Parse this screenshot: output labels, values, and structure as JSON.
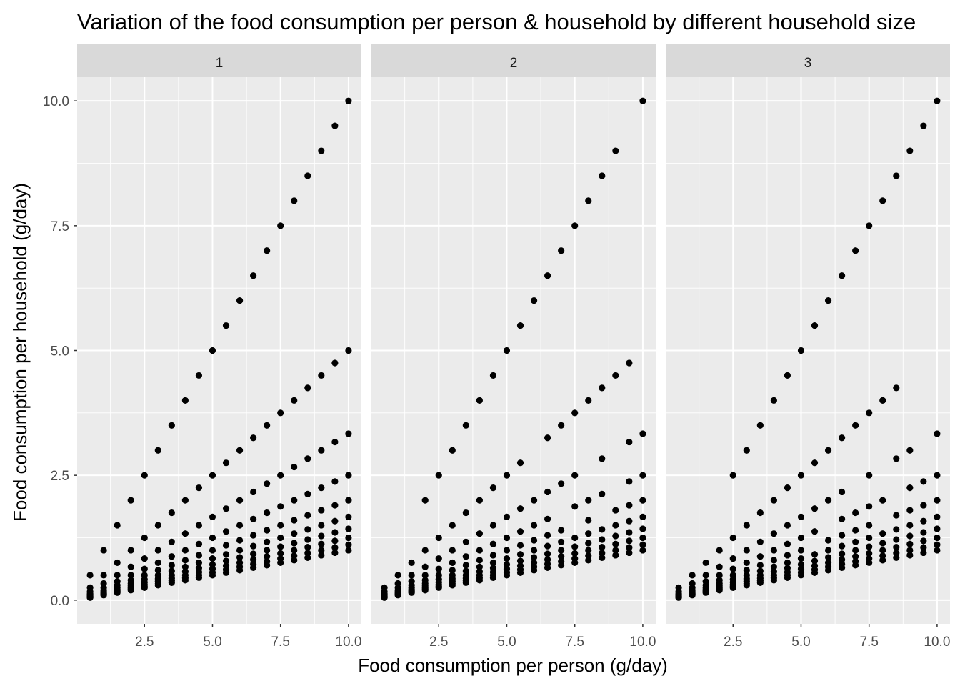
{
  "chart_data": {
    "type": "scatter",
    "title": "Variation of the food consumption per person & household by different household size",
    "xlabel": "Food consumption per person (g/day)",
    "ylabel": "Food consumption per household (g/day)",
    "xlim": [
      0.025,
      10.475
    ],
    "ylim": [
      -0.475,
      10.475
    ],
    "x_ticks": [
      "2.5",
      "5.0",
      "7.5",
      "10.0"
    ],
    "x_tick_values": [
      2.5,
      5.0,
      7.5,
      10.0
    ],
    "y_ticks": [
      "0.0",
      "2.5",
      "5.0",
      "7.5",
      "10.0"
    ],
    "y_tick_values": [
      0,
      2.5,
      5.0,
      7.5,
      10.0
    ],
    "grid": true,
    "point_color": "#000000",
    "panel_background": "#ebebeb",
    "strip_background": "#d9d9d9",
    "consumption_per_person": [
      0.5,
      1.0,
      1.5,
      2.0,
      2.5,
      3.0,
      3.5,
      4.0,
      4.5,
      5.0,
      5.5,
      6.0,
      6.5,
      7.0,
      7.5,
      8.0,
      8.5,
      9.0,
      9.5,
      10.0
    ],
    "household_sizes": [
      1,
      2,
      3,
      4,
      5,
      6,
      7,
      8,
      9,
      10
    ],
    "facets": [
      {
        "label": "1",
        "missing": []
      },
      {
        "label": "2",
        "missing": [
          [
            0.5,
            1
          ],
          [
            1.0,
            1
          ],
          [
            1.5,
            1
          ],
          [
            9.5,
            1
          ],
          [
            10.0,
            2
          ],
          [
            6.0,
            2
          ],
          [
            8.0,
            3
          ],
          [
            9.0,
            3
          ],
          [
            7.0,
            4
          ],
          [
            7.5,
            5
          ],
          [
            8.5,
            5
          ],
          [
            9.0,
            4
          ]
        ]
      },
      {
        "label": "3",
        "missing": [
          [
            0.5,
            1
          ],
          [
            1.0,
            1
          ],
          [
            1.5,
            1
          ],
          [
            2.0,
            1
          ],
          [
            10.0,
            2
          ],
          [
            9.0,
            2
          ],
          [
            9.5,
            2
          ],
          [
            8.0,
            3
          ],
          [
            7.0,
            3
          ],
          [
            9.5,
            3
          ],
          [
            6.0,
            4
          ],
          [
            8.5,
            4
          ],
          [
            5.5,
            5
          ],
          [
            8.0,
            5
          ]
        ]
      }
    ]
  }
}
